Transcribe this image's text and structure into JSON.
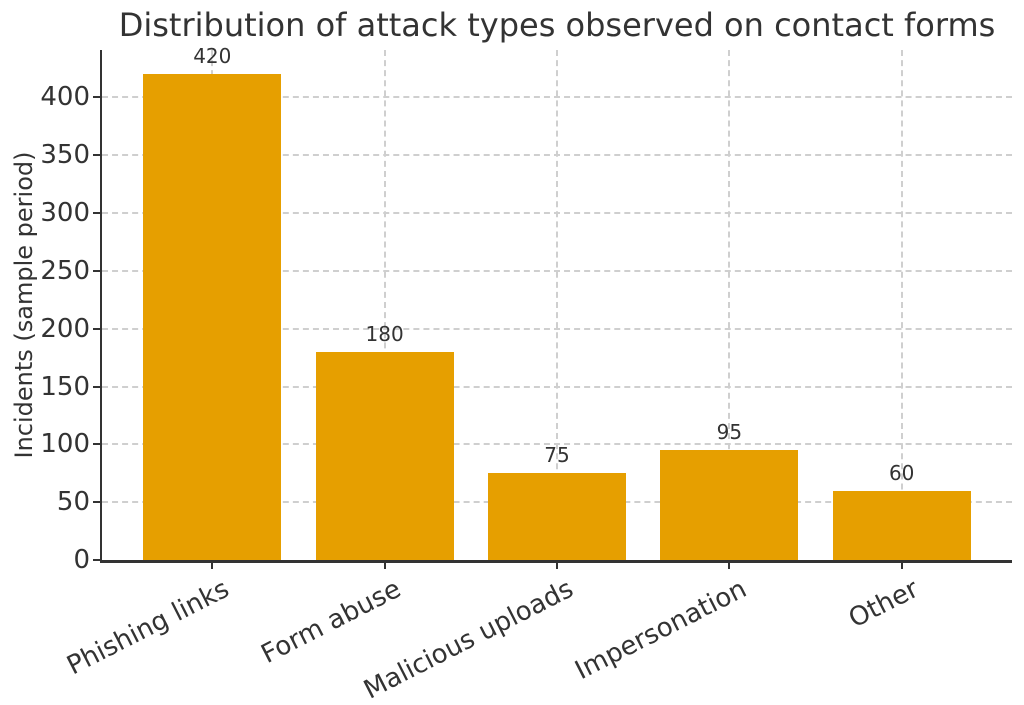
{
  "chart_data": {
    "type": "bar",
    "title": "Distribution of attack types observed on contact forms",
    "xlabel": "",
    "ylabel": "Incidents (sample period)",
    "categories": [
      "Phishing links",
      "Form abuse",
      "Malicious uploads",
      "Impersonation",
      "Other"
    ],
    "values": [
      420,
      180,
      75,
      95,
      60
    ],
    "bar_labels": [
      "420",
      "180",
      "75",
      "95",
      "60"
    ],
    "yticks": [
      0,
      50,
      100,
      150,
      200,
      250,
      300,
      350,
      400
    ],
    "ylim": [
      0,
      441
    ],
    "grid": "both-axes, dashed, under bars",
    "legend": "none",
    "colors": {
      "bar": "#E69F00",
      "text": "#333333",
      "spine": "#333333",
      "grid": "#cfcfcf",
      "background": "#ffffff"
    }
  }
}
